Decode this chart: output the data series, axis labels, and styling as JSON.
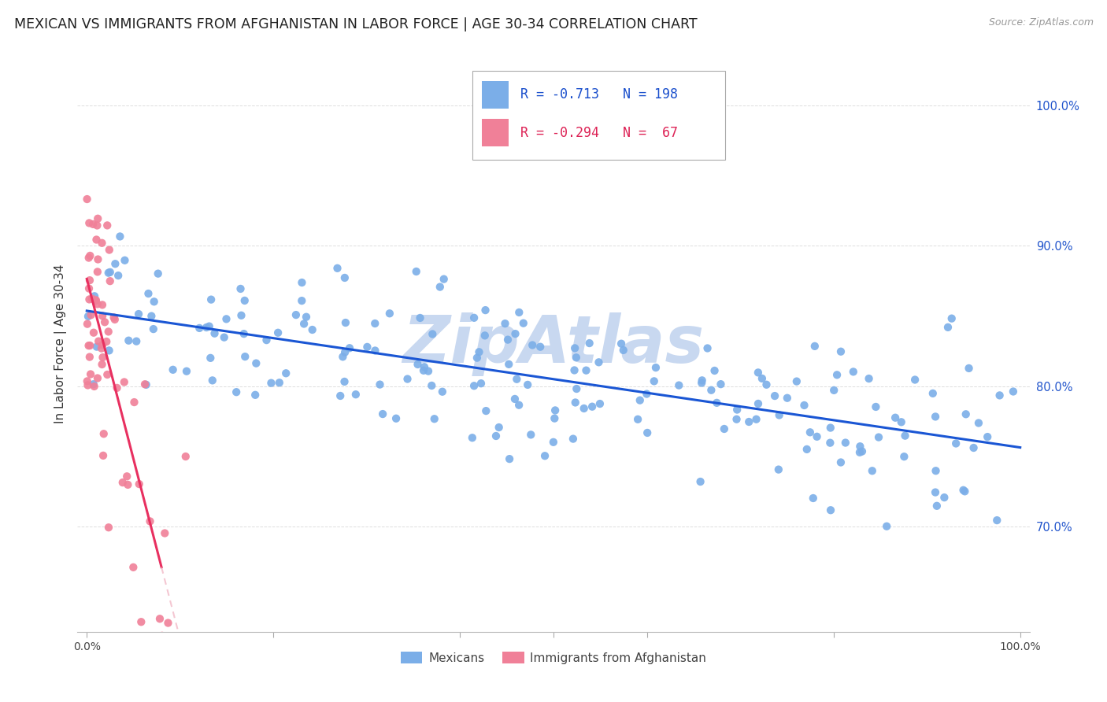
{
  "title": "MEXICAN VS IMMIGRANTS FROM AFGHANISTAN IN LABOR FORCE | AGE 30-34 CORRELATION CHART",
  "source": "Source: ZipAtlas.com",
  "ylabel": "In Labor Force | Age 30-34",
  "yticks": [
    "70.0%",
    "80.0%",
    "90.0%",
    "100.0%"
  ],
  "ytick_values": [
    0.7,
    0.8,
    0.9,
    1.0
  ],
  "legend_entries": [
    {
      "label": "Mexicans",
      "color": "#aec6f0"
    },
    {
      "label": "Immigrants from Afghanistan",
      "color": "#f4a0b0"
    }
  ],
  "r_mexican": -0.713,
  "n_mexican": 198,
  "r_afghan": -0.294,
  "n_afghan": 67,
  "blue_dot_color": "#7baee8",
  "pink_dot_color": "#f08098",
  "blue_line_color": "#1a56d4",
  "pink_line_color": "#e83060",
  "pink_dash_color": "#f0b0c0",
  "watermark": "ZipAtlas",
  "watermark_color": "#c8d8f0",
  "background_color": "#ffffff",
  "grid_color": "#e0e0e0",
  "legend_r1": "R = -0.713",
  "legend_n1": "N = 198",
  "legend_r2": "R = -0.294",
  "legend_n2": "N =  67"
}
